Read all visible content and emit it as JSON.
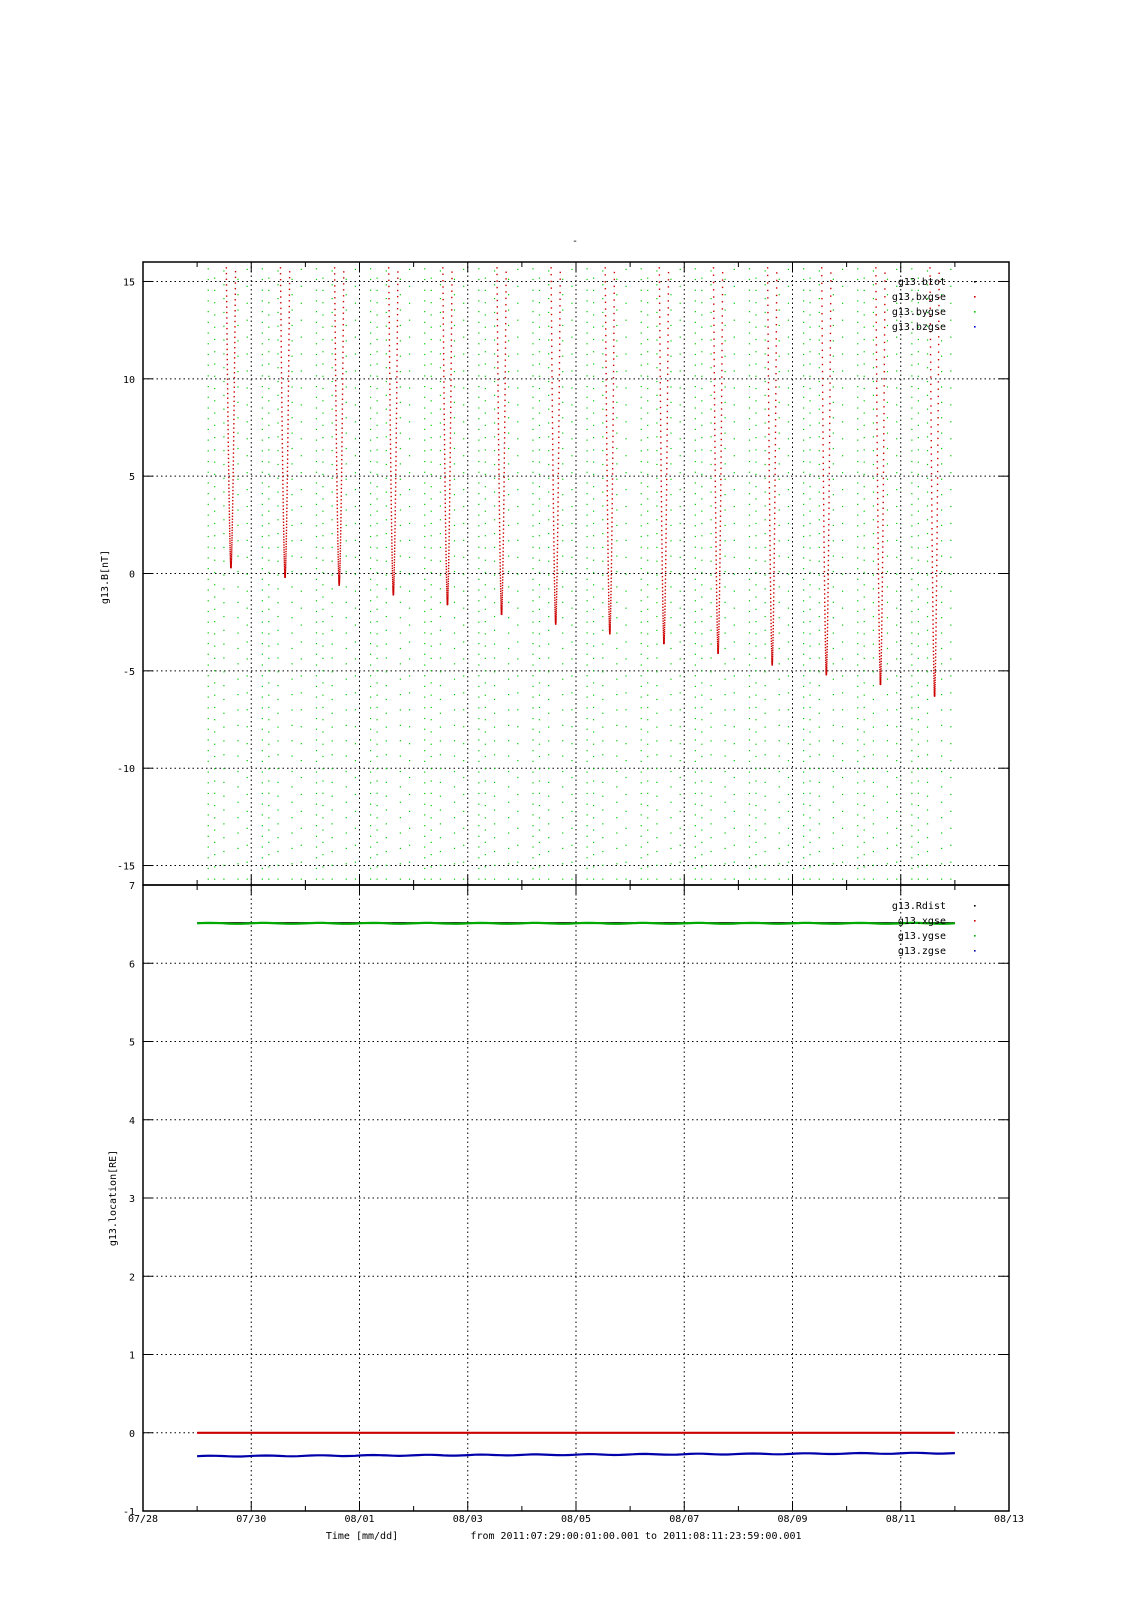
{
  "title": "-",
  "footer": {
    "xlabel": "Time [mm/dd]",
    "range_text": "from 2011:07:29:00:01:00.001  to  2011:08:11:23:59:00.001"
  },
  "colors": {
    "btot": "#000000",
    "bxgse": "#cc0000",
    "bygse": "#00cc00",
    "bzgse": "#0000cc",
    "Rdist": "#000000",
    "xgse": "#cc0000",
    "ygse": "#00aa00",
    "zgse": "#0000aa"
  },
  "chart_data": [
    {
      "type": "scatter",
      "ylabel": "g13.B[nT]",
      "xlabel": "",
      "ylim": [
        -16,
        16
      ],
      "yticks": [
        15,
        10,
        5,
        0,
        -5,
        -10,
        -15
      ],
      "xlim": [
        "07/28",
        "08/13"
      ],
      "grid": true,
      "legend_position": "top-right",
      "series": [
        {
          "name": "g13.btot",
          "color": "#000000",
          "points": []
        },
        {
          "name": "g13.bxgse",
          "color": "#cc0000",
          "dip_minima": [
            {
              "x": "07/29 15:00",
              "y": 0.3
            },
            {
              "x": "07/30 15:00",
              "y": -0.2
            },
            {
              "x": "07/31 15:00",
              "y": -0.6
            },
            {
              "x": "08/01 15:00",
              "y": -1.1
            },
            {
              "x": "08/02 15:00",
              "y": -1.6
            },
            {
              "x": "08/03 15:00",
              "y": -2.1
            },
            {
              "x": "08/04 15:00",
              "y": -2.6
            },
            {
              "x": "08/05 15:00",
              "y": -3.1
            },
            {
              "x": "08/06 15:00",
              "y": -3.6
            },
            {
              "x": "08/07 15:00",
              "y": -4.1
            },
            {
              "x": "08/08 15:00",
              "y": -4.7
            },
            {
              "x": "08/09 15:00",
              "y": -5.2
            },
            {
              "x": "08/10 15:00",
              "y": -5.7
            },
            {
              "x": "08/11 15:00",
              "y": -6.3
            }
          ]
        },
        {
          "name": "g13.bygse",
          "color": "#00cc00",
          "style": "sparse dotted vertical traces spanning the full y range"
        },
        {
          "name": "g13.bzgse",
          "color": "#0000cc",
          "points": []
        }
      ]
    },
    {
      "type": "line",
      "ylabel": "g13.location[RE]",
      "xlabel": "Time [mm/dd]",
      "ylim": [
        -1,
        7
      ],
      "yticks": [
        7,
        6,
        5,
        4,
        3,
        2,
        1,
        0,
        -1
      ],
      "xlim": [
        "07/28",
        "08/13"
      ],
      "xticks": [
        "07/28",
        "07/30",
        "08/01",
        "08/03",
        "08/05",
        "08/07",
        "08/09",
        "08/11",
        "08/13"
      ],
      "grid": true,
      "legend_position": "top-right",
      "series": [
        {
          "name": "g13.Rdist",
          "color": "#000000",
          "x": [
            "07/29",
            "08/12"
          ],
          "y": [
            6.52,
            6.52
          ]
        },
        {
          "name": "g13.xgse",
          "color": "#cc0000",
          "x": [
            "07/29",
            "08/12"
          ],
          "y": [
            0.0,
            0.0
          ]
        },
        {
          "name": "g13.ygse",
          "color": "#00aa00",
          "x": [
            "07/29",
            "08/12"
          ],
          "y": [
            6.51,
            6.51
          ]
        },
        {
          "name": "g13.zgse",
          "color": "#0000aa",
          "x": [
            "07/29",
            "08/12"
          ],
          "y": [
            -0.3,
            -0.26
          ]
        }
      ]
    }
  ]
}
